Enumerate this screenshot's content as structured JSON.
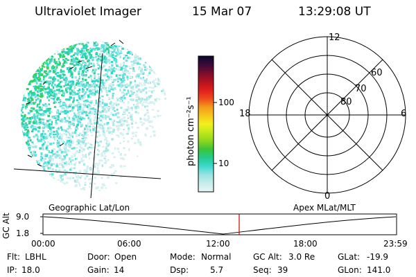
{
  "header": {
    "instrument": "Ultraviolet Imager",
    "date": "15 Mar 07",
    "time": "13:29:08 UT"
  },
  "colorbar": {
    "unit_label": "photon cm⁻²s⁻¹",
    "ticks": [
      "100",
      "10"
    ],
    "gradient": [
      "#e8f6f6",
      "#c7ecec",
      "#99e3e3",
      "#3fd8cf",
      "#25cb8e",
      "#39c43a",
      "#8cd61f",
      "#c2e81c",
      "#f2f01b",
      "#f7c51c",
      "#f39a1c",
      "#eb4b1c",
      "#e21e1e",
      "#b0131f",
      "#7a0c2c",
      "#3a0a3a",
      "#0a0a2a"
    ]
  },
  "polar_plot": {
    "mlt_labels": {
      "top": "12",
      "bottom": "0",
      "left": "18",
      "right": "6"
    },
    "lat_labels": [
      "60",
      "70",
      "80"
    ]
  },
  "timeline": {
    "left_title": "Geographic Lat/Lon",
    "right_title": "Apex MLat/MLT",
    "y_axis_label": "GC Alt",
    "y_ticks": [
      "9.0",
      "1.8"
    ],
    "x_ticks": [
      "00:00",
      "06:00",
      "12:00",
      "18:00",
      "23:59"
    ],
    "current_time": "13:29:08",
    "marker_color": "#cc0000"
  },
  "status": {
    "row1": [
      {
        "key": "Flt:",
        "value": "LBHL"
      },
      {
        "key": "Door:",
        "value": "Open"
      },
      {
        "key": "Mode:",
        "value": "Normal"
      },
      {
        "key": "GC Alt:",
        "value": "3.0 Re"
      },
      {
        "key": "GLat:",
        "value": "-19.9"
      }
    ],
    "row2": [
      {
        "key": "IP:",
        "value": "18.0"
      },
      {
        "key": "Gain:",
        "value": "14"
      },
      {
        "key": "Dsp:",
        "value": "5.7"
      },
      {
        "key": "Seq:",
        "value": "39"
      },
      {
        "key": "GLon:",
        "value": "141.0"
      }
    ]
  }
}
